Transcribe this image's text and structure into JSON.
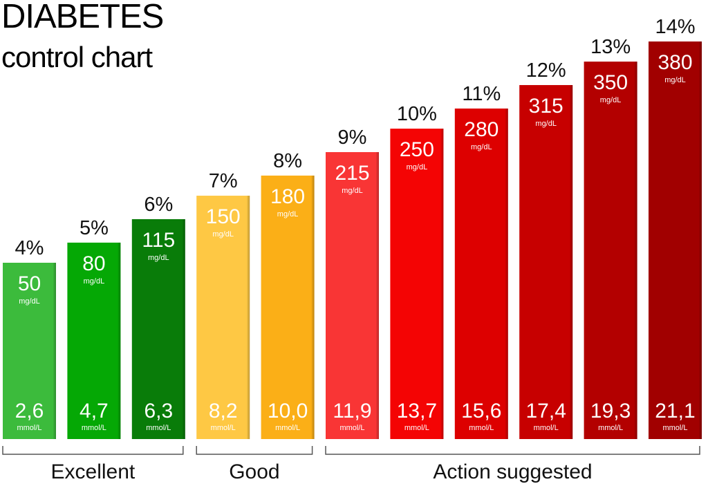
{
  "chart_data": {
    "type": "bar",
    "title": "DIABETES",
    "subtitle": "control chart",
    "categories": [
      "4%",
      "5%",
      "6%",
      "7%",
      "8%",
      "9%",
      "10%",
      "11%",
      "12%",
      "13%",
      "14%"
    ],
    "series": [
      {
        "values": [
          50,
          80,
          115,
          150,
          180,
          215,
          250,
          280,
          315,
          350,
          380
        ],
        "unit": "mg/dL"
      },
      {
        "values": [
          "2,6",
          "4,7",
          "6,3",
          "8,2",
          "10,0",
          "11,9",
          "13,7",
          "15,6",
          "17,4",
          "19,3",
          "21,1"
        ],
        "unit": "mmol/L"
      }
    ],
    "bar_colors": [
      "#3cbb3c",
      "#05a805",
      "#097c09",
      "#fec844",
      "#fbaf17",
      "#f93535",
      "#f40404",
      "#dd0000",
      "#c70000",
      "#b30000",
      "#a10000"
    ],
    "groups": [
      {
        "label": "Excellent",
        "from": 0,
        "to": 2
      },
      {
        "label": "Good",
        "from": 3,
        "to": 4
      },
      {
        "label": "Action suggested",
        "from": 5,
        "to": 10
      }
    ],
    "ylim": [
      0,
      400
    ],
    "grid": false,
    "legend": "none"
  }
}
